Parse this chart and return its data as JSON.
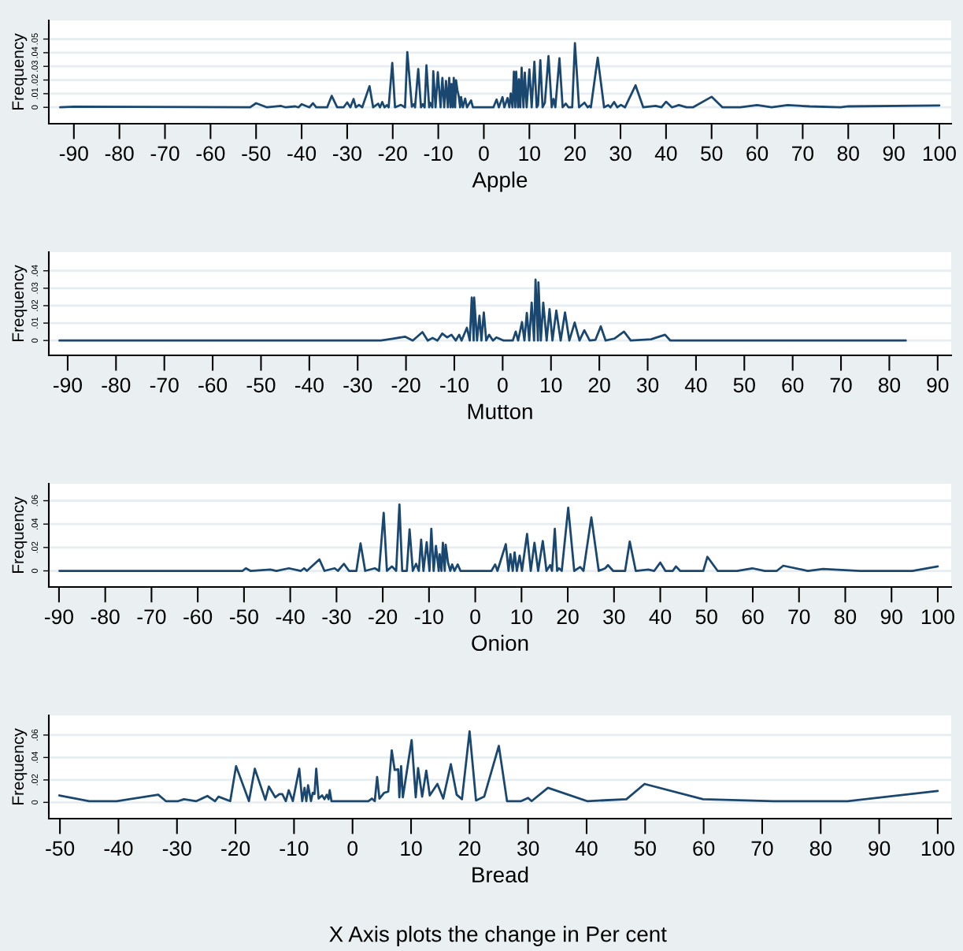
{
  "chart_data": [
    {
      "type": "line",
      "xlabel": "Apple",
      "ylabel": "Frequency",
      "xlim": [
        -95.5,
        102.6
      ],
      "ylim": [
        -0.012,
        0.0636
      ],
      "xticks": [
        -90,
        -80,
        -70,
        -60,
        -50,
        -40,
        -30,
        -20,
        -10,
        0,
        10,
        20,
        30,
        40,
        50,
        60,
        70,
        80,
        90,
        100
      ],
      "yticks": [
        {
          "value": 0,
          "label": "0"
        },
        {
          "value": 0.01,
          "label": ".01"
        },
        {
          "value": 0.02,
          "label": ".02"
        },
        {
          "value": 0.03,
          "label": ".03"
        },
        {
          "value": 0.04,
          "label": ".04"
        },
        {
          "value": 0.05,
          "label": ".05"
        }
      ],
      "grid": "y",
      "series": [
        {
          "color": "#1a476f",
          "x": [
            -93,
            -90,
            -51.3,
            -50,
            -47.6,
            -44.5,
            -43.5,
            -41.4,
            -40.7,
            -40,
            -38.3,
            -37.5,
            -36.8,
            -34.4,
            -33.4,
            -32.2,
            -30.8,
            -30,
            -29.3,
            -28.6,
            -28.1,
            -27.4,
            -26.7,
            -25.1,
            -24.3,
            -23.2,
            -22.8,
            -22.3,
            -21.8,
            -21.3,
            -20.9,
            -20.1,
            -19.5,
            -18.2,
            -17.3,
            -16.8,
            -15.8,
            -15.4,
            -15.1,
            -14.4,
            -13.8,
            -13.4,
            -13,
            -12.6,
            -12,
            -11.8,
            -11.3,
            -11.1,
            -10.6,
            -10.1,
            -9.5,
            -9.1,
            -8.7,
            -8.3,
            -7.9,
            -7.6,
            -7.3,
            -7.1,
            -6.8,
            -6.6,
            -6.3,
            -6.1,
            -5.8,
            -5.5,
            -5.2,
            -5,
            -4.6,
            -4.1,
            -3.7,
            -2.8,
            -2.4,
            -0.7,
            2.1,
            2.8,
            3.3,
            4.1,
            4.5,
            5.2,
            5.6,
            5.9,
            6.3,
            6.6,
            6.9,
            7.1,
            7.5,
            7.7,
            8,
            8.3,
            8.7,
            9,
            9.4,
            10,
            10.5,
            11.1,
            11.6,
            11.9,
            12.4,
            12.9,
            13.4,
            14.2,
            14.9,
            15.3,
            15.7,
            16.6,
            17.3,
            18,
            18.6,
            19.4,
            20,
            20.9,
            22.1,
            22.8,
            23.2,
            23.5,
            25,
            26.4,
            27.3,
            27.8,
            28.6,
            29.3,
            30.1,
            31,
            33.3,
            35,
            37.7,
            39,
            40,
            41.3,
            42.8,
            44.5,
            45.9,
            50,
            52.4,
            56.3,
            60,
            63.2,
            66.7,
            71.5,
            78.3,
            80,
            100
          ],
          "values": [
            0,
            0.0005,
            0,
            0.003,
            0,
            0.001,
            0,
            0.0007,
            0,
            0.0023,
            0,
            0.003,
            0,
            0,
            0.0084,
            0,
            0,
            0.0036,
            0,
            0.0061,
            0,
            0.0018,
            0,
            0.0155,
            0,
            0.0027,
            0,
            0.0039,
            0,
            0.0016,
            0,
            0.0325,
            0,
            0.0018,
            0,
            0.0405,
            0.0005,
            0.0023,
            0,
            0.028,
            0,
            0.0023,
            0,
            0.0307,
            0,
            0.0034,
            0,
            0.0264,
            0,
            0.0257,
            0,
            0.0216,
            0,
            0.0193,
            0,
            0.0216,
            0,
            0.017,
            0,
            0.0216,
            0,
            0.0198,
            0.0125,
            0.008,
            0,
            0.0075,
            0,
            0.0064,
            0,
            0.005,
            0,
            0,
            0,
            0.0057,
            0,
            0.0075,
            0,
            0.0068,
            0,
            0.0102,
            0,
            0.0261,
            0,
            0.0261,
            0,
            0.0205,
            0,
            0.0291,
            0,
            0.0255,
            0,
            0.0277,
            0,
            0.0334,
            0,
            0.0016,
            0.0345,
            0,
            0.0034,
            0.0375,
            0,
            0.0061,
            0,
            0.0359,
            0,
            0.0027,
            0,
            0,
            0.047,
            0,
            0.0034,
            0,
            0.001,
            0,
            0.0364,
            0,
            0.0016,
            0,
            0.0039,
            0,
            0.0018,
            0,
            0.0161,
            0,
            0.0011,
            0,
            0.0041,
            0,
            0.0016,
            0,
            0,
            0.0077,
            0,
            0,
            0.0016,
            0,
            0.0016,
            0.0007,
            0,
            0.0007,
            0.0014
          ]
        }
      ]
    },
    {
      "type": "line",
      "xlabel": "Mutton",
      "ylabel": "Frequency",
      "xlim": [
        -93.9,
        92.8
      ],
      "ylim": [
        -0.0085,
        0.0507
      ],
      "xticks": [
        -90,
        -80,
        -70,
        -60,
        -50,
        -40,
        -30,
        -20,
        -10,
        0,
        10,
        20,
        30,
        40,
        50,
        60,
        70,
        80,
        90
      ],
      "yticks": [
        {
          "value": 0,
          "label": "0"
        },
        {
          "value": 0.01,
          "label": ".01"
        },
        {
          "value": 0.02,
          "label": ".02"
        },
        {
          "value": 0.03,
          "label": ".03"
        },
        {
          "value": 0.04,
          "label": ".04"
        }
      ],
      "grid": "y",
      "series": [
        {
          "color": "#1a476f",
          "x": [
            -91.7,
            -25.2,
            -22.7,
            -20.2,
            -18.6,
            -16.6,
            -15.5,
            -14.5,
            -13.5,
            -12.5,
            -11.5,
            -10.6,
            -9.7,
            -9,
            -8.5,
            -7.4,
            -6.8,
            -6.4,
            -6,
            -5.9,
            -5.3,
            -4.8,
            -4.4,
            -3.9,
            -3.4,
            -2.8,
            -2,
            -1.3,
            0.2,
            2.1,
            2.7,
            3.2,
            4,
            4.5,
            5,
            5.5,
            6,
            6.5,
            6.8,
            7.3,
            7.4,
            7.9,
            8.4,
            9.1,
            9.7,
            10.3,
            11.1,
            12,
            12.9,
            13.8,
            14.9,
            15.9,
            16.9,
            18,
            19.2,
            20.3,
            21.3,
            23.1,
            25.1,
            26.5,
            30.7,
            33.6,
            34.7,
            83.4
          ],
          "values": [
            0,
            0,
            0.0011,
            0.0022,
            0,
            0.0048,
            0,
            0.0015,
            0,
            0.004,
            0.0018,
            0.0033,
            0,
            0.0033,
            0,
            0.0073,
            0,
            0.0246,
            0,
            0.0246,
            0,
            0.0143,
            0,
            0.0161,
            0,
            0.0033,
            0,
            0.0018,
            0,
            0,
            0.0051,
            0,
            0.0106,
            0,
            0.0158,
            0,
            0.0217,
            0,
            0.0349,
            0,
            0.0334,
            0,
            0.0217,
            0,
            0.018,
            0,
            0.0172,
            0,
            0.0161,
            0,
            0.0103,
            0,
            0.0059,
            0,
            0.0004,
            0.0081,
            0,
            0.0011,
            0.0051,
            0,
            0.0007,
            0.0033,
            0,
            0
          ]
        }
      ]
    },
    {
      "type": "line",
      "xlabel": "Onion",
      "ylabel": "Frequency",
      "xlim": [
        -92.2,
        102.9
      ],
      "ylim": [
        -0.0138,
        0.0745
      ],
      "xticks": [
        -90,
        -80,
        -70,
        -60,
        -50,
        -40,
        -30,
        -20,
        -10,
        0,
        10,
        20,
        30,
        40,
        50,
        60,
        70,
        80,
        90,
        100
      ],
      "yticks": [
        {
          "value": 0,
          "label": "0"
        },
        {
          "value": 0.02,
          "label": ".02"
        },
        {
          "value": 0.04,
          "label": ".04"
        },
        {
          "value": 0.06,
          "label": ".06"
        }
      ],
      "grid": "y",
      "series": [
        {
          "color": "#1a476f",
          "x": [
            -89.9,
            -50.3,
            -49.6,
            -48.6,
            -44.3,
            -43,
            -40.3,
            -37.7,
            -37,
            -36.4,
            -33.7,
            -32.6,
            -30.4,
            -29.7,
            -28.4,
            -27.3,
            -25.7,
            -24.8,
            -23.8,
            -21.7,
            -20.8,
            -19.8,
            -19.1,
            -18,
            -17.1,
            -16.4,
            -15.8,
            -14.8,
            -14.2,
            -13.5,
            -12.8,
            -12.2,
            -11.7,
            -11.2,
            -10.5,
            -9.9,
            -9.5,
            -9,
            -8.5,
            -7.9,
            -7.7,
            -7.3,
            -7,
            -6.6,
            -6.4,
            -5.9,
            -5.4,
            -5,
            -4.5,
            -3.8,
            -3.2,
            3.5,
            4.3,
            4.8,
            6.6,
            7.2,
            7.6,
            8.1,
            8.5,
            9,
            9.6,
            10.1,
            11.2,
            12,
            12.8,
            13.6,
            14.6,
            15.4,
            16.2,
            16.6,
            17.2,
            17.7,
            18.1,
            18.7,
            20.1,
            21.4,
            22.7,
            23.4,
            25.1,
            26.7,
            28.1,
            28.7,
            29.8,
            32.4,
            33.4,
            34.7,
            37.4,
            38.7,
            40,
            41.1,
            42.7,
            43.4,
            44.3,
            49.3,
            50.2,
            52.4,
            56.6,
            59.9,
            62.6,
            65.2,
            66.6,
            71.9,
            75.2,
            83.2,
            88.5,
            94.5,
            100
          ],
          "values": [
            0,
            0,
            0.0022,
            0,
            0.0011,
            0,
            0.0022,
            0,
            0.0022,
            0,
            0.0098,
            0,
            0.0022,
            0,
            0.006,
            0,
            0,
            0.0235,
            0,
            0.0022,
            0,
            0.0496,
            0,
            0.0038,
            0,
            0.0567,
            0,
            0,
            0.0355,
            0,
            0.006,
            0,
            0.0267,
            0,
            0.0245,
            0,
            0.036,
            0,
            0.0213,
            0,
            0.0142,
            0,
            0.024,
            0,
            0.0224,
            0.0071,
            0,
            0.0055,
            0,
            0.0055,
            0,
            0,
            0.0055,
            0,
            0.0229,
            0,
            0.0142,
            0,
            0.0158,
            0,
            0.0131,
            0,
            0.0316,
            0,
            0.024,
            0,
            0.0256,
            0,
            0.0049,
            0,
            0.036,
            0,
            0.0022,
            0,
            0.054,
            0,
            0.0033,
            0,
            0.0458,
            0,
            0.0022,
            0.0049,
            0,
            0,
            0.0251,
            0,
            0.0011,
            0,
            0.0071,
            0,
            0,
            0.0038,
            0,
            0,
            0.012,
            0,
            0,
            0.0022,
            0,
            0,
            0.0044,
            0,
            0.0016,
            0,
            0,
            0,
            0.0038
          ]
        }
      ]
    },
    {
      "type": "line",
      "xlabel": "Bread",
      "ylabel": "Frequency",
      "xlim": [
        -51.9,
        102.3
      ],
      "ylim": [
        -0.0145,
        0.0775
      ],
      "xticks": [
        -50,
        -40,
        -30,
        -20,
        -10,
        0,
        10,
        20,
        30,
        40,
        50,
        60,
        70,
        80,
        90,
        100
      ],
      "yticks": [
        {
          "value": 0,
          "label": "0"
        },
        {
          "value": 0.02,
          "label": ".02"
        },
        {
          "value": 0.04,
          "label": ".04"
        },
        {
          "value": 0.06,
          "label": ".06"
        }
      ],
      "grid": "y",
      "annotations": [
        "X Axis plots the change in Per cent"
      ],
      "series": [
        {
          "color": "#1a476f",
          "x": [
            -50.1,
            -45,
            -40.3,
            -33.2,
            -31.9,
            -29.8,
            -28.8,
            -26.7,
            -24.8,
            -23.5,
            -22.9,
            -20.9,
            -19.9,
            -17.7,
            -16.7,
            -14.9,
            -14.3,
            -13.2,
            -12.5,
            -12,
            -11.4,
            -10.9,
            -10.2,
            -9.1,
            -8.6,
            -8.2,
            -7.9,
            -7.6,
            -7.1,
            -6.8,
            -6.5,
            -6.2,
            -5.8,
            -5.2,
            -4.8,
            -4.4,
            -4.1,
            -3.9,
            -3.6,
            2.7,
            3.3,
            3.8,
            4.2,
            4.6,
            5.4,
            6.1,
            6.7,
            7.2,
            7.8,
            8,
            8.3,
            8.6,
            10.1,
            10.8,
            11.2,
            11.9,
            12.6,
            13.2,
            14.5,
            15.5,
            16.8,
            17.8,
            18.7,
            20,
            21.1,
            22.5,
            25,
            26.4,
            28.8,
            30,
            30.6,
            33.4,
            40.1,
            46.8,
            49.9,
            59.9,
            72,
            84.6,
            100
          ],
          "values": [
            0.0062,
            0.0011,
            0.0011,
            0.0068,
            0.0011,
            0.0011,
            0.0028,
            0.0011,
            0.0057,
            0.0011,
            0.0051,
            0.0011,
            0.0323,
            0.0011,
            0.03,
            0.0023,
            0.0141,
            0.0045,
            0.0074,
            0.0074,
            0.0011,
            0.0108,
            0.0011,
            0.03,
            0.0011,
            0.013,
            0.0011,
            0.0153,
            0.0011,
            0.0085,
            0.0074,
            0.03,
            0.0034,
            0.0062,
            0.0028,
            0.0068,
            0.0028,
            0.0108,
            0.0011,
            0.0011,
            0.0034,
            0.0011,
            0.0226,
            0.0034,
            0.0085,
            0.0096,
            0.0464,
            0.0289,
            0.0294,
            0.0045,
            0.0323,
            0.0045,
            0.0555,
            0.0045,
            0.0306,
            0.0051,
            0.0283,
            0.0062,
            0.0164,
            0.0034,
            0.034,
            0.0068,
            0.0028,
            0.0634,
            0.0017,
            0.0051,
            0.0504,
            0.0011,
            0.0011,
            0.004,
            0.0011,
            0.013,
            0.0011,
            0.0028,
            0.0164,
            0.0028,
            0.0011,
            0.0011,
            0.0102
          ]
        }
      ]
    }
  ]
}
